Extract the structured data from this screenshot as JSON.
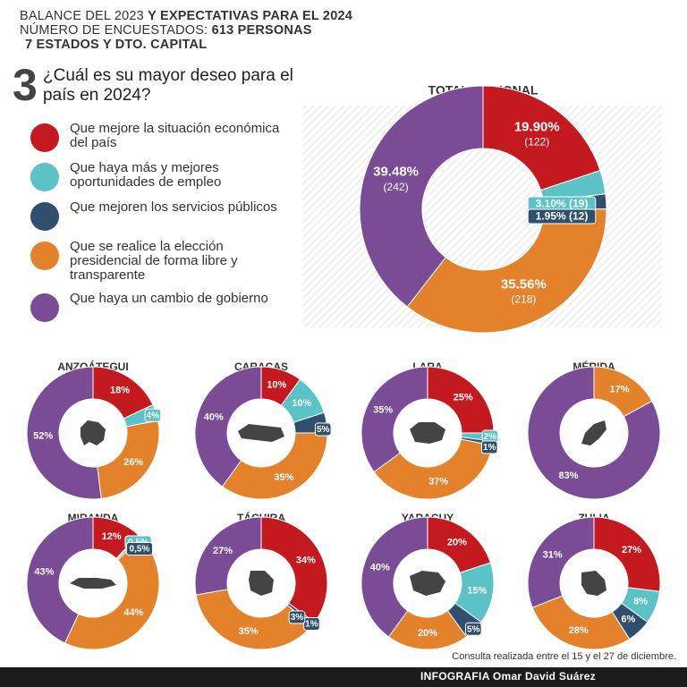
{
  "header": {
    "line1_a": "BALANCE DEL 2023 ",
    "line1_b": "Y EXPECTATIVAS PARA EL 2024",
    "line2_a": "NÚMERO DE ENCUESTADOS: ",
    "line2_b": "613 PERSONAS",
    "line3": "7 ESTADOS Y DTO. CAPITAL"
  },
  "question": {
    "number": "3",
    "text": "¿Cuál es su mayor deseo para el país en 2024?"
  },
  "colors": {
    "red": "#c41a1f",
    "cyan": "#5bc2c5",
    "navy": "#2f4f6d",
    "orange": "#e4822b",
    "purple": "#7b4c96"
  },
  "legend": [
    {
      "label": "Que mejore la situación económica del país",
      "color": "#c41a1f"
    },
    {
      "label": "Que haya más y mejores oportunidades de empleo",
      "color": "#5bc2c5"
    },
    {
      "label": "Que mejoren los servicios públicos",
      "color": "#2f4f6d"
    },
    {
      "label": "Que se realice la elección presidencial de forma libre y transparente",
      "color": "#e4822b"
    },
    {
      "label": "Que haya un cambio de gobierno",
      "color": "#7b4c96"
    }
  ],
  "chart_data": [
    {
      "type": "pie",
      "title": "TOTAL NACIONAL",
      "categories": [
        "Que mejore la situación económica del país",
        "Que haya más y mejores oportunidades de empleo",
        "Que mejoren los servicios públicos",
        "Que se realice la elección presidencial de forma libre y transparente",
        "Que haya un cambio de gobierno"
      ],
      "values": [
        19.9,
        3.1,
        1.95,
        35.56,
        39.48
      ],
      "labels": [
        "19.90%",
        "3.10%",
        "1.95%",
        "35.56%",
        "39.48%"
      ],
      "counts": [
        "(122)",
        "(19)",
        "(12)",
        "(218)",
        "(242)"
      ]
    },
    {
      "type": "pie",
      "title": "ANZOÁTEGUI",
      "values": [
        18,
        4,
        0,
        26,
        52
      ],
      "labels": [
        "18%",
        "4%",
        "",
        "26%",
        "52%"
      ]
    },
    {
      "type": "pie",
      "title": "CARACAS",
      "values": [
        10,
        10,
        5,
        35,
        40
      ],
      "labels": [
        "10%",
        "10%",
        "5%",
        "35%",
        "40%"
      ]
    },
    {
      "type": "pie",
      "title": "LARA",
      "values": [
        25,
        2,
        1,
        37,
        35
      ],
      "labels": [
        "25%",
        "2%",
        "1%",
        "37%",
        "35%"
      ]
    },
    {
      "type": "pie",
      "title": "MÉRIDA",
      "values": [
        0,
        0,
        0,
        17,
        83
      ],
      "labels": [
        "",
        "",
        "",
        "17%",
        "83%"
      ]
    },
    {
      "type": "pie",
      "title": "MIRANDA",
      "values": [
        12,
        0.5,
        0.5,
        44,
        43
      ],
      "labels": [
        "12%",
        "0.5%",
        "0,5%",
        "44%",
        "43%"
      ]
    },
    {
      "type": "pie",
      "title": "TÁCHIRA",
      "values": [
        34,
        0,
        1,
        35,
        27
      ],
      "labels": [
        "34%",
        "",
        "1%",
        "35%",
        "27%"
      ],
      "extra_labels": [
        "3%"
      ]
    },
    {
      "type": "pie",
      "title": "YARACUY",
      "values": [
        20,
        15,
        5,
        20,
        40
      ],
      "labels": [
        "20%",
        "15%",
        "5%",
        "20%",
        "40%"
      ]
    },
    {
      "type": "pie",
      "title": "ZULIA",
      "values": [
        27,
        8,
        6,
        28,
        31
      ],
      "labels": [
        "27%",
        "8%",
        "6%",
        "28%",
        "31%"
      ]
    }
  ],
  "footer": {
    "note": "Consulta realizada entre el 15 y el 27 de diciembre.",
    "credit": "INFOGRAFIA Omar David Suárez"
  }
}
